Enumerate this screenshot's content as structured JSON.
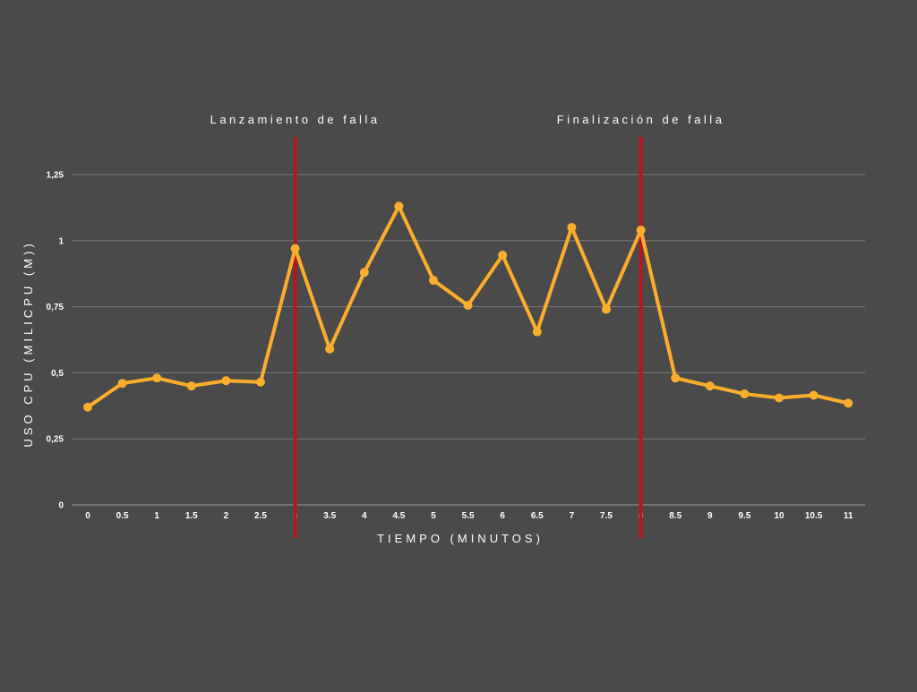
{
  "chart_data": {
    "type": "line",
    "xlabel": "TIEMPO (MINUTOS)",
    "ylabel": "USO CPU (MILICPU (M))",
    "x_tick_labels": [
      "0",
      "0.5",
      "1",
      "1.5",
      "2",
      "2.5",
      "3",
      "3.5",
      "4",
      "4.5",
      "5",
      "5.5",
      "6",
      "6.5",
      "7",
      "7.5",
      "8",
      "8.5",
      "9",
      "9.5",
      "10",
      "10.5",
      "11"
    ],
    "y_ticks": [
      0,
      0.25,
      0.5,
      0.75,
      1,
      1.25
    ],
    "y_tick_labels": [
      "0",
      "0,25",
      "0,5",
      "0,75",
      "1",
      "1,25"
    ],
    "ylim": [
      0,
      1.25
    ],
    "grid": true,
    "series": [
      {
        "values": [
          0.37,
          0.46,
          0.48,
          0.45,
          0.47,
          0.465,
          0.97,
          0.59,
          0.88,
          1.13,
          0.85,
          0.755,
          0.945,
          0.655,
          1.05,
          0.74,
          1.04,
          0.48,
          0.45,
          0.42,
          0.405,
          0.415,
          0.385
        ],
        "color": "#fbae2c"
      }
    ],
    "annotations": [
      {
        "x_index": 6,
        "label": "Lanzamiento de falla",
        "color": "#b9141a"
      },
      {
        "x_index": 16,
        "label": "Finalización de falla",
        "color": "#b9141a"
      }
    ],
    "colors": {
      "background": "#4a4a4a",
      "grid": "#7a7a7a",
      "text": "#ffffff"
    }
  }
}
